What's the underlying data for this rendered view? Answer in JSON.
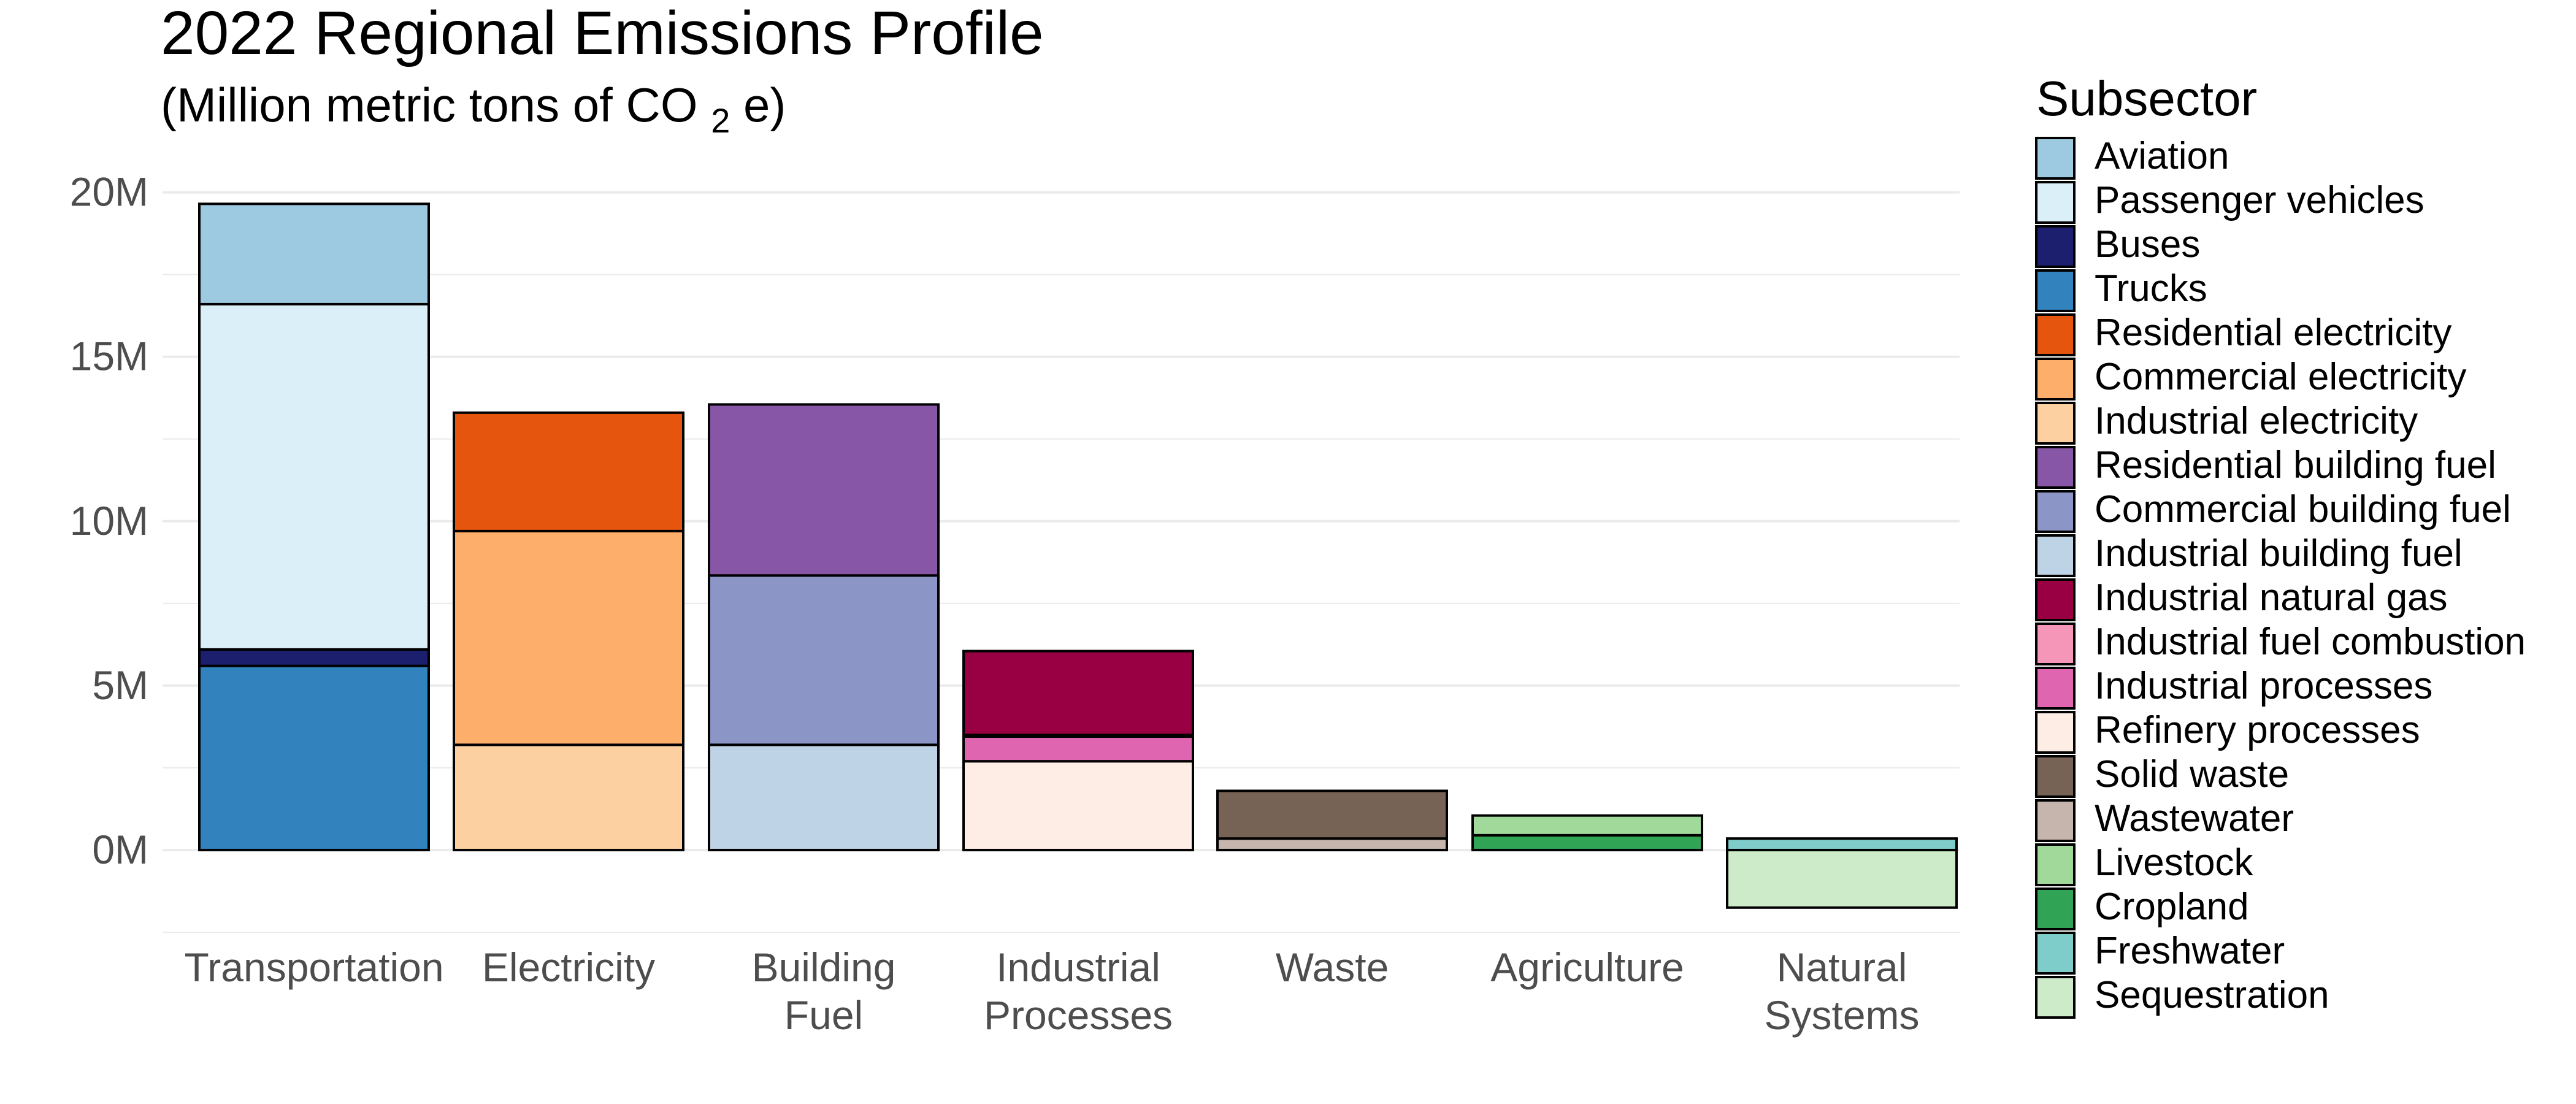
{
  "chart_data": {
    "type": "bar",
    "stacked": true,
    "title": "2022 Regional Emissions Profile",
    "subtitle": {
      "prefix": "(Million metric tons of CO",
      "subscript": "2",
      "suffix": "e)"
    },
    "xlabel": "",
    "ylabel": "",
    "ylim": [
      -2.5,
      21
    ],
    "y_ticks": [
      {
        "value": 0,
        "label": "0M"
      },
      {
        "value": 5,
        "label": "5M"
      },
      {
        "value": 10,
        "label": "10M"
      },
      {
        "value": 15,
        "label": "15M"
      },
      {
        "value": 20,
        "label": "20M"
      }
    ],
    "categories": [
      {
        "label_lines": [
          "Transportation"
        ]
      },
      {
        "label_lines": [
          "Electricity"
        ]
      },
      {
        "label_lines": [
          "Building",
          "Fuel"
        ]
      },
      {
        "label_lines": [
          "Industrial",
          "Processes"
        ]
      },
      {
        "label_lines": [
          "Waste"
        ]
      },
      {
        "label_lines": [
          "Agriculture"
        ]
      },
      {
        "label_lines": [
          "Natural",
          "Systems"
        ]
      }
    ],
    "legend_title": "Subsector",
    "legend_position": "right",
    "grid": true,
    "series": [
      {
        "name": "Aviation",
        "color": "#9ECAE1",
        "category": 0,
        "value": 3.05
      },
      {
        "name": "Passenger vehicles",
        "color": "#DAEFF7",
        "category": 0,
        "value": 10.5
      },
      {
        "name": "Buses",
        "color": "#1B1F6E",
        "category": 0,
        "value": 0.5
      },
      {
        "name": "Trucks",
        "color": "#3182BD",
        "category": 0,
        "value": 5.6
      },
      {
        "name": "Residential electricity",
        "color": "#E6550D",
        "category": 1,
        "value": 3.6
      },
      {
        "name": "Commercial electricity",
        "color": "#FDAE6B",
        "category": 1,
        "value": 6.5
      },
      {
        "name": "Industrial electricity",
        "color": "#FDD0A2",
        "category": 1,
        "value": 3.2
      },
      {
        "name": "Residential building fuel",
        "color": "#8856A7",
        "category": 2,
        "value": 5.2
      },
      {
        "name": "Commercial building fuel",
        "color": "#8C96C6",
        "category": 2,
        "value": 5.15
      },
      {
        "name": "Industrial building fuel",
        "color": "#BFD3E6",
        "category": 2,
        "value": 3.2
      },
      {
        "name": "Industrial natural gas",
        "color": "#980043",
        "category": 3,
        "value": 2.55
      },
      {
        "name": "Industrial fuel combustion",
        "color": "#F595B7",
        "category": 3,
        "value": 0.05
      },
      {
        "name": "Industrial processes",
        "color": "#DF65B0",
        "category": 3,
        "value": 0.75
      },
      {
        "name": "Refinery processes",
        "color": "#FEEDE4",
        "category": 3,
        "value": 2.7
      },
      {
        "name": "Solid waste",
        "color": "#766356",
        "category": 4,
        "value": 1.45
      },
      {
        "name": "Wastewater",
        "color": "#C5B5AC",
        "category": 4,
        "value": 0.35
      },
      {
        "name": "Livestock",
        "color": "#A1D99B",
        "category": 5,
        "value": 0.6
      },
      {
        "name": "Cropland",
        "color": "#31A354",
        "category": 5,
        "value": 0.45
      },
      {
        "name": "Freshwater",
        "color": "#7FCDCA",
        "category": 6,
        "value": 0.35
      },
      {
        "name": "Sequestration",
        "color": "#CDEBC8",
        "category": 6,
        "value": -1.75
      }
    ]
  }
}
